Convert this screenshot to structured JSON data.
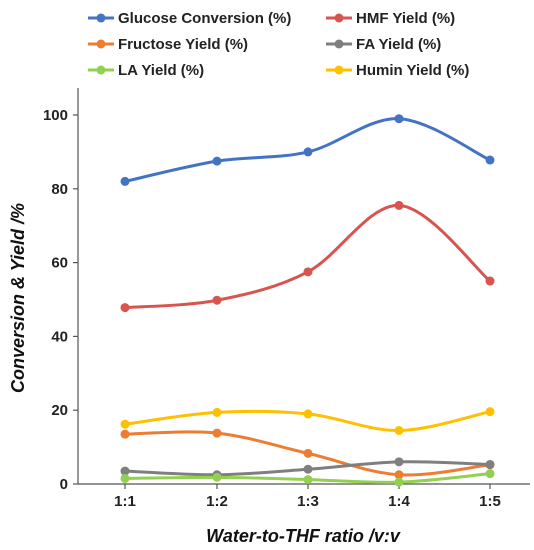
{
  "chart_data": {
    "type": "line",
    "xlabel": "Water-to-THF ratio /v:v",
    "ylabel": "Conversion  & Yield /%",
    "categories": [
      "1:1",
      "1:2",
      "1:3",
      "1:4",
      "1:5"
    ],
    "ylim": [
      0,
      100
    ],
    "yticks": [
      0,
      20,
      40,
      60,
      80,
      100
    ],
    "grid": false,
    "legend_position": "top",
    "series": [
      {
        "name": "Glucose Conversion (%)",
        "color": "#4472C4",
        "values": [
          82,
          87.5,
          90,
          99,
          87.8
        ]
      },
      {
        "name": "HMF Yield (%)",
        "color": "#D9534F",
        "values": [
          47.8,
          49.8,
          57.5,
          75.5,
          55
        ]
      },
      {
        "name": "Fructose Yield (%)",
        "color": "#ED7D31",
        "values": [
          13.5,
          13.8,
          8.3,
          2.5,
          5.2
        ]
      },
      {
        "name": "FA Yield (%)",
        "color": "#7F7F7F",
        "values": [
          3.5,
          2.5,
          4,
          6,
          5.3
        ]
      },
      {
        "name": "LA Yield (%)",
        "color": "#92D050",
        "values": [
          1.5,
          1.8,
          1.2,
          0.5,
          2.8
        ]
      },
      {
        "name": "Humin Yield (%)",
        "color": "#FFC000",
        "values": [
          16.2,
          19.4,
          19,
          14.5,
          19.6
        ]
      }
    ]
  }
}
